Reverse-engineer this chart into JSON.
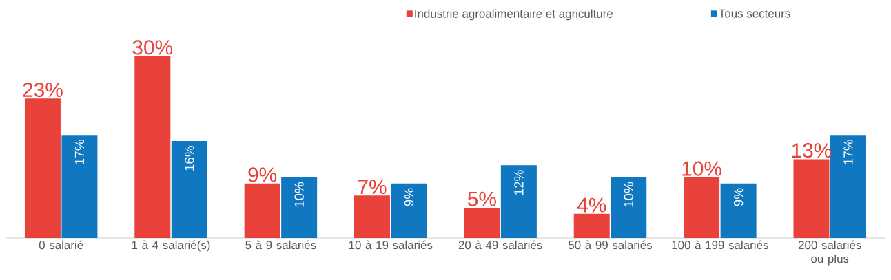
{
  "chart_data": {
    "type": "bar",
    "categories": [
      "0 salarié",
      "1 à 4 salarié(s)",
      "5 à 9 salariés",
      "10 à 19 salariés",
      "20 à 49 salariés",
      "50 à 99 salariés",
      "100 à 199 salariés",
      "200 salariés ou plus"
    ],
    "series": [
      {
        "name": "Industrie agroalimentaire et agriculture",
        "color": "#e8423b",
        "values": [
          23,
          30,
          9,
          7,
          5,
          4,
          10,
          13
        ],
        "value_labels": [
          "23%",
          "30%",
          "9%",
          "7%",
          "5%",
          "4%",
          "10%",
          "13%"
        ]
      },
      {
        "name": "Tous secteurs",
        "color": "#0f78c0",
        "values": [
          17,
          16,
          10,
          9,
          12,
          10,
          9,
          17
        ],
        "value_labels": [
          "17%",
          "16%",
          "10%",
          "9%",
          "12%",
          "10%",
          "9%",
          "17%"
        ]
      }
    ],
    "legend": "top"
  }
}
